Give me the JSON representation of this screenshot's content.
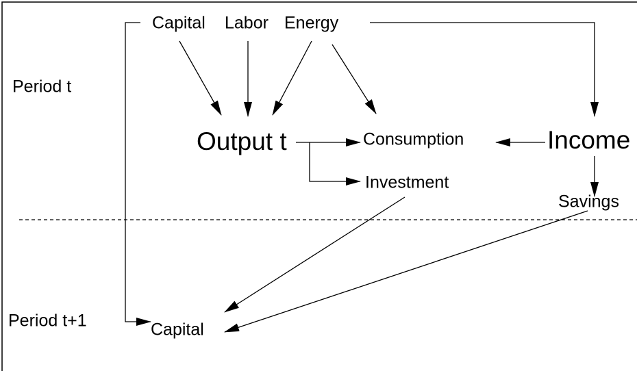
{
  "labels": {
    "capital_t": "Capital",
    "labor": "Labor",
    "energy": "Energy",
    "period_t": "Period t",
    "output": "Output t",
    "consumption": "Consumption",
    "income": "Income",
    "investment": "Investment",
    "savings": "Savings",
    "period_t1": "Period t+1",
    "capital_t1": "Capital"
  }
}
